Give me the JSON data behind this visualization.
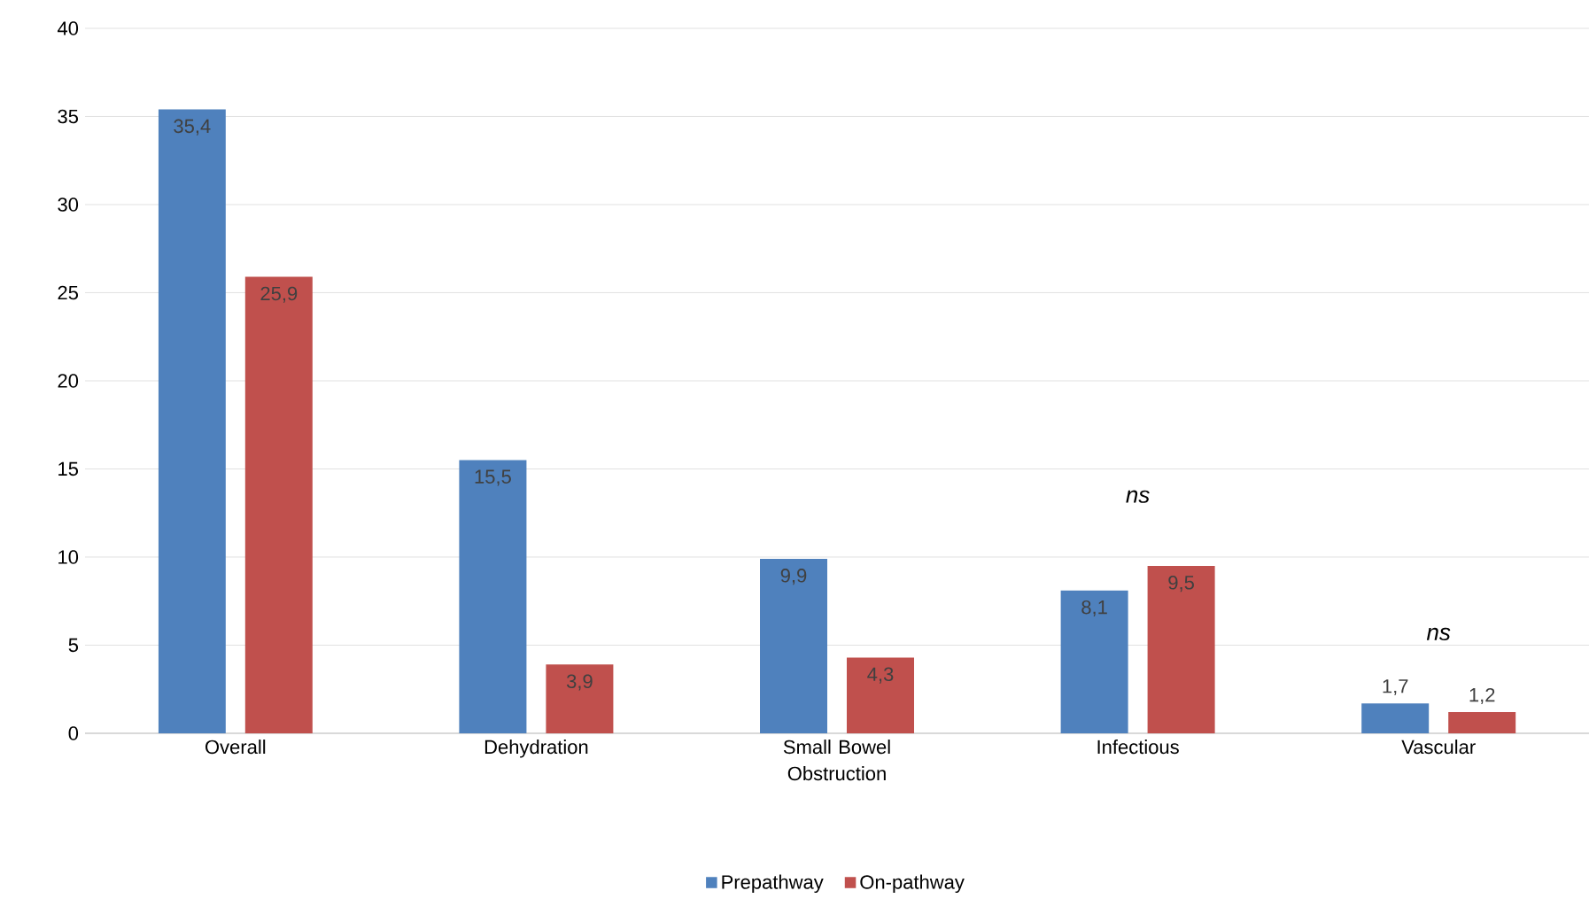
{
  "chart_data": {
    "type": "bar",
    "categories": [
      "Overall",
      "Dehydration",
      "Small Bowel Obstruction",
      "Infectious",
      "Vascular"
    ],
    "series": [
      {
        "name": "Prepathway",
        "color": "#4f81bd",
        "values": [
          35.4,
          15.5,
          9.9,
          8.1,
          1.7
        ],
        "value_labels": [
          "35,4",
          "15,5",
          "9,9",
          "8,1",
          "1,7"
        ]
      },
      {
        "name": "On-pathway",
        "color": "#c0504d",
        "values": [
          25.9,
          3.9,
          4.3,
          9.5,
          1.2
        ],
        "value_labels": [
          "25,9",
          "3,9",
          "4,3",
          "9,5",
          "1,2"
        ]
      }
    ],
    "ylim": [
      0,
      40
    ],
    "yticks": [
      0,
      5,
      10,
      15,
      20,
      25,
      30,
      35,
      40
    ],
    "grid": "y",
    "legend": "bottom",
    "annotations": [
      "ns",
      "ns"
    ]
  }
}
